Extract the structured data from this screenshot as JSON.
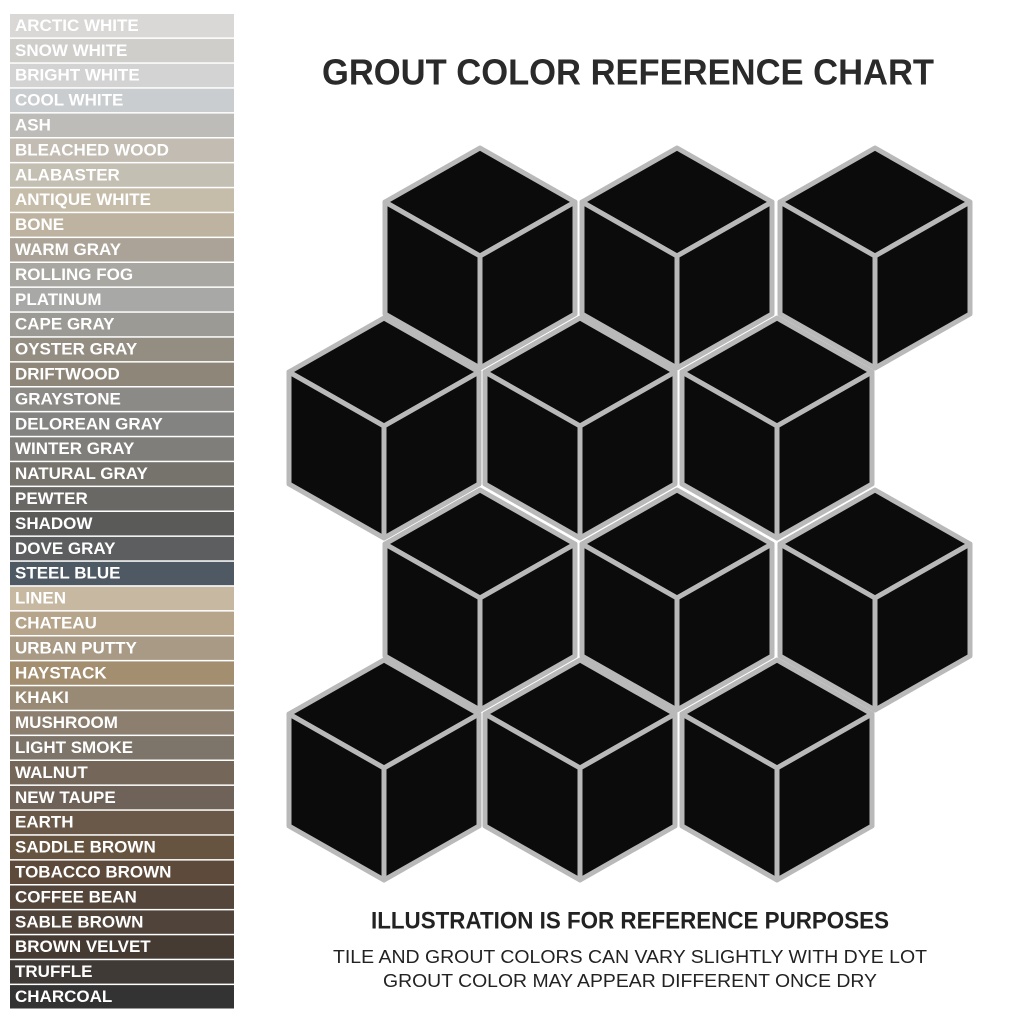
{
  "title": "GROUT COLOR REFERENCE CHART",
  "swatches": [
    {
      "name": "ARCTIC WHITE",
      "color": "#d9d8d6"
    },
    {
      "name": "SNOW WHITE",
      "color": "#cfcecb"
    },
    {
      "name": "BRIGHT WHITE",
      "color": "#d2d3d2"
    },
    {
      "name": "COOL WHITE",
      "color": "#c9cdd0"
    },
    {
      "name": "ASH",
      "color": "#bdbcb8"
    },
    {
      "name": "BLEACHED WOOD",
      "color": "#c2bcb2"
    },
    {
      "name": "ALABASTER",
      "color": "#c4bfb3"
    },
    {
      "name": "ANTIQUE WHITE",
      "color": "#c6bcaa"
    },
    {
      "name": "BONE",
      "color": "#beb3a1"
    },
    {
      "name": "WARM GRAY",
      "color": "#aba397"
    },
    {
      "name": "ROLLING FOG",
      "color": "#a9a7a1"
    },
    {
      "name": "PLATINUM",
      "color": "#a8a8a6"
    },
    {
      "name": "CAPE GRAY",
      "color": "#9c9a95"
    },
    {
      "name": "OYSTER GRAY",
      "color": "#948d82"
    },
    {
      "name": "DRIFTWOOD",
      "color": "#8e8679"
    },
    {
      "name": "GRAYSTONE",
      "color": "#8b8a87"
    },
    {
      "name": "DELOREAN GRAY",
      "color": "#838481"
    },
    {
      "name": "WINTER GRAY",
      "color": "#7f7e7a"
    },
    {
      "name": "NATURAL GRAY",
      "color": "#76736d"
    },
    {
      "name": "PEWTER",
      "color": "#696865"
    },
    {
      "name": "SHADOW",
      "color": "#5a5a59"
    },
    {
      "name": "DOVE GRAY",
      "color": "#5c5e60"
    },
    {
      "name": "STEEL BLUE",
      "color": "#4e5964"
    },
    {
      "name": "LINEN",
      "color": "#c7b8a1"
    },
    {
      "name": "CHATEAU",
      "color": "#b6a48b"
    },
    {
      "name": "URBAN PUTTY",
      "color": "#a89a85"
    },
    {
      "name": "HAYSTACK",
      "color": "#a48e70"
    },
    {
      "name": "KHAKI",
      "color": "#988a74"
    },
    {
      "name": "MUSHROOM",
      "color": "#8d7f6f"
    },
    {
      "name": "LIGHT SMOKE",
      "color": "#7d746a"
    },
    {
      "name": "WALNUT",
      "color": "#75665a"
    },
    {
      "name": "NEW TAUPE",
      "color": "#6f6359"
    },
    {
      "name": "EARTH",
      "color": "#6a5949"
    },
    {
      "name": "SADDLE BROWN",
      "color": "#665440"
    },
    {
      "name": "TOBACCO BROWN",
      "color": "#5d4a3a"
    },
    {
      "name": "COFFEE BEAN",
      "color": "#54463b"
    },
    {
      "name": "SABLE BROWN",
      "color": "#4f433a"
    },
    {
      "name": "BROWN VELVET",
      "color": "#463b33"
    },
    {
      "name": "TRUFFLE",
      "color": "#3f3a36"
    },
    {
      "name": "CHARCOAL",
      "color": "#333333"
    }
  ],
  "footer": {
    "heading": "ILLUSTRATION IS FOR REFERENCE PURPOSES",
    "line1": "TILE AND GROUT COLORS CAN VARY SLIGHTLY WITH DYE LOT",
    "line2": "GROUT COLOR MAY APPEAR DIFFERENT ONCE DRY"
  }
}
